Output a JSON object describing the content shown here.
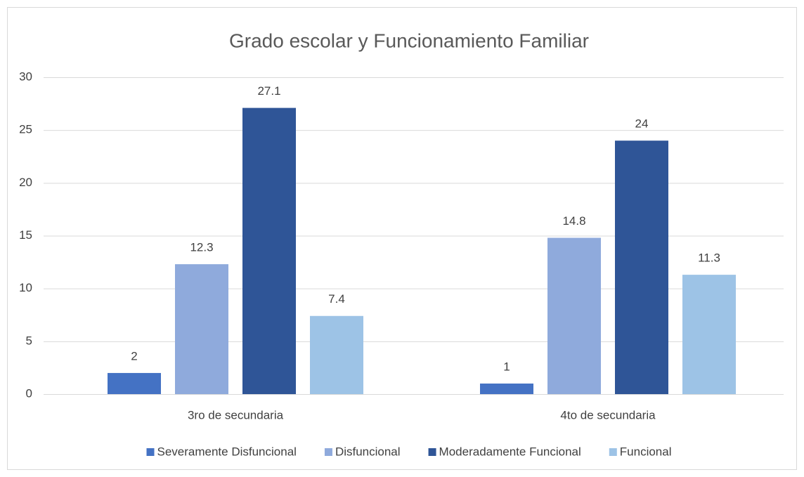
{
  "chart_data": {
    "type": "bar",
    "title": "Grado escolar y Funcionamiento Familiar",
    "categories": [
      "3ro de secundaria",
      "4to de secundaria"
    ],
    "series": [
      {
        "name": "Severamente Disfuncional",
        "color": "#4472c4",
        "values": [
          2,
          1
        ]
      },
      {
        "name": "Disfuncional",
        "color": "#8faadc",
        "values": [
          12.3,
          14.8
        ]
      },
      {
        "name": "Moderadamente Funcional",
        "color": "#2f5597",
        "values": [
          27.1,
          24
        ]
      },
      {
        "name": "Funcional",
        "color": "#9dc3e6",
        "values": [
          7.4,
          11.3
        ]
      }
    ],
    "ylim": [
      0,
      30
    ],
    "yticks": [
      0,
      5,
      10,
      15,
      20,
      25,
      30
    ],
    "grid": true,
    "legend": "bottom"
  }
}
